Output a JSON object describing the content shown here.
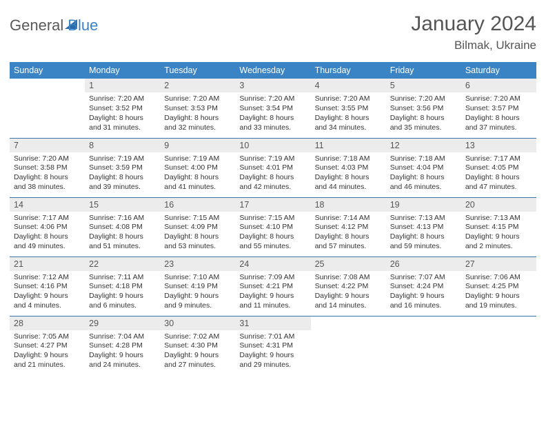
{
  "logo": {
    "word1": "General",
    "word2": "Blue"
  },
  "title": "January 2024",
  "location": "Bilmak, Ukraine",
  "colors": {
    "header_bg": "#3a84c5",
    "header_fg": "#ffffff",
    "daynum_bg": "#ececec",
    "rule": "#3a74a8",
    "text": "#333333"
  },
  "weekdays": [
    "Sunday",
    "Monday",
    "Tuesday",
    "Wednesday",
    "Thursday",
    "Friday",
    "Saturday"
  ],
  "weeks": [
    [
      null,
      {
        "n": "1",
        "sr": "7:20 AM",
        "ss": "3:52 PM",
        "dl": "8 hours and 31 minutes."
      },
      {
        "n": "2",
        "sr": "7:20 AM",
        "ss": "3:53 PM",
        "dl": "8 hours and 32 minutes."
      },
      {
        "n": "3",
        "sr": "7:20 AM",
        "ss": "3:54 PM",
        "dl": "8 hours and 33 minutes."
      },
      {
        "n": "4",
        "sr": "7:20 AM",
        "ss": "3:55 PM",
        "dl": "8 hours and 34 minutes."
      },
      {
        "n": "5",
        "sr": "7:20 AM",
        "ss": "3:56 PM",
        "dl": "8 hours and 35 minutes."
      },
      {
        "n": "6",
        "sr": "7:20 AM",
        "ss": "3:57 PM",
        "dl": "8 hours and 37 minutes."
      }
    ],
    [
      {
        "n": "7",
        "sr": "7:20 AM",
        "ss": "3:58 PM",
        "dl": "8 hours and 38 minutes."
      },
      {
        "n": "8",
        "sr": "7:19 AM",
        "ss": "3:59 PM",
        "dl": "8 hours and 39 minutes."
      },
      {
        "n": "9",
        "sr": "7:19 AM",
        "ss": "4:00 PM",
        "dl": "8 hours and 41 minutes."
      },
      {
        "n": "10",
        "sr": "7:19 AM",
        "ss": "4:01 PM",
        "dl": "8 hours and 42 minutes."
      },
      {
        "n": "11",
        "sr": "7:18 AM",
        "ss": "4:03 PM",
        "dl": "8 hours and 44 minutes."
      },
      {
        "n": "12",
        "sr": "7:18 AM",
        "ss": "4:04 PM",
        "dl": "8 hours and 46 minutes."
      },
      {
        "n": "13",
        "sr": "7:17 AM",
        "ss": "4:05 PM",
        "dl": "8 hours and 47 minutes."
      }
    ],
    [
      {
        "n": "14",
        "sr": "7:17 AM",
        "ss": "4:06 PM",
        "dl": "8 hours and 49 minutes."
      },
      {
        "n": "15",
        "sr": "7:16 AM",
        "ss": "4:08 PM",
        "dl": "8 hours and 51 minutes."
      },
      {
        "n": "16",
        "sr": "7:15 AM",
        "ss": "4:09 PM",
        "dl": "8 hours and 53 minutes."
      },
      {
        "n": "17",
        "sr": "7:15 AM",
        "ss": "4:10 PM",
        "dl": "8 hours and 55 minutes."
      },
      {
        "n": "18",
        "sr": "7:14 AM",
        "ss": "4:12 PM",
        "dl": "8 hours and 57 minutes."
      },
      {
        "n": "19",
        "sr": "7:13 AM",
        "ss": "4:13 PM",
        "dl": "8 hours and 59 minutes."
      },
      {
        "n": "20",
        "sr": "7:13 AM",
        "ss": "4:15 PM",
        "dl": "9 hours and 2 minutes."
      }
    ],
    [
      {
        "n": "21",
        "sr": "7:12 AM",
        "ss": "4:16 PM",
        "dl": "9 hours and 4 minutes."
      },
      {
        "n": "22",
        "sr": "7:11 AM",
        "ss": "4:18 PM",
        "dl": "9 hours and 6 minutes."
      },
      {
        "n": "23",
        "sr": "7:10 AM",
        "ss": "4:19 PM",
        "dl": "9 hours and 9 minutes."
      },
      {
        "n": "24",
        "sr": "7:09 AM",
        "ss": "4:21 PM",
        "dl": "9 hours and 11 minutes."
      },
      {
        "n": "25",
        "sr": "7:08 AM",
        "ss": "4:22 PM",
        "dl": "9 hours and 14 minutes."
      },
      {
        "n": "26",
        "sr": "7:07 AM",
        "ss": "4:24 PM",
        "dl": "9 hours and 16 minutes."
      },
      {
        "n": "27",
        "sr": "7:06 AM",
        "ss": "4:25 PM",
        "dl": "9 hours and 19 minutes."
      }
    ],
    [
      {
        "n": "28",
        "sr": "7:05 AM",
        "ss": "4:27 PM",
        "dl": "9 hours and 21 minutes."
      },
      {
        "n": "29",
        "sr": "7:04 AM",
        "ss": "4:28 PM",
        "dl": "9 hours and 24 minutes."
      },
      {
        "n": "30",
        "sr": "7:02 AM",
        "ss": "4:30 PM",
        "dl": "9 hours and 27 minutes."
      },
      {
        "n": "31",
        "sr": "7:01 AM",
        "ss": "4:31 PM",
        "dl": "9 hours and 29 minutes."
      },
      null,
      null,
      null
    ]
  ],
  "labels": {
    "sunrise": "Sunrise:",
    "sunset": "Sunset:",
    "daylight": "Daylight:"
  }
}
